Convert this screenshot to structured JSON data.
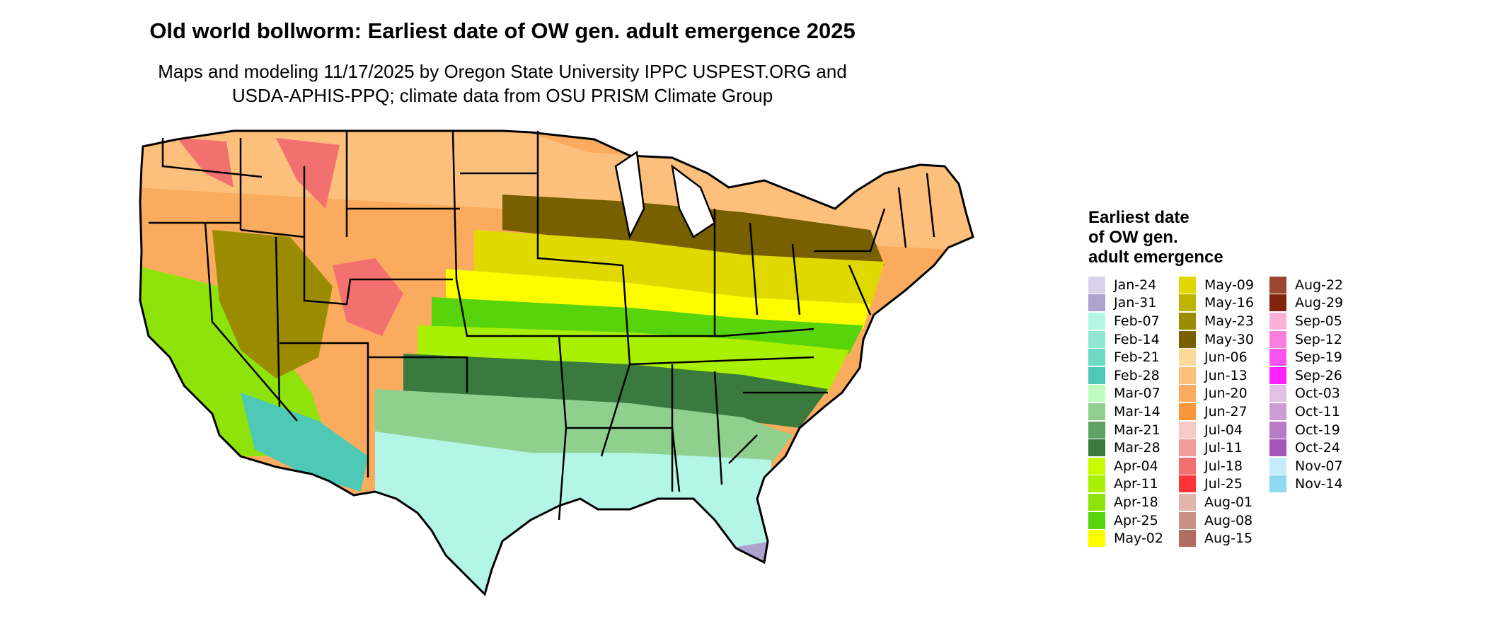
{
  "title": "Old world bollworm: Earliest date of OW gen. adult emergence 2025",
  "subtitle_lines": [
    "Maps and modeling 11/17/2025 by Oregon State University IPPC USPEST.ORG and",
    "USDA-APHIS-PPQ; climate data from OSU PRISM Climate Group"
  ],
  "legend": {
    "title_lines": [
      "Earliest date",
      "of OW gen.",
      "adult emergence"
    ],
    "columns": [
      [
        {
          "label": "Jan-24",
          "color": "#d9d2ec"
        },
        {
          "label": "Jan-31",
          "color": "#b0a2cf"
        },
        {
          "label": "Feb-07",
          "color": "#b3f5e6"
        },
        {
          "label": "Feb-14",
          "color": "#8ee8d3"
        },
        {
          "label": "Feb-21",
          "color": "#6cdac4"
        },
        {
          "label": "Feb-28",
          "color": "#4ec9b5"
        },
        {
          "label": "Mar-07",
          "color": "#bdfbbf"
        },
        {
          "label": "Mar-14",
          "color": "#8fd08e"
        },
        {
          "label": "Mar-21",
          "color": "#5fa162"
        },
        {
          "label": "Mar-28",
          "color": "#3b7a3f"
        },
        {
          "label": "Apr-04",
          "color": "#c8fb00"
        },
        {
          "label": "Apr-11",
          "color": "#a9f000"
        },
        {
          "label": "Apr-18",
          "color": "#8ee30b"
        },
        {
          "label": "Apr-25",
          "color": "#58d40c"
        },
        {
          "label": "May-02",
          "color": "#fdfd00"
        }
      ],
      [
        {
          "label": "May-09",
          "color": "#dfd900"
        },
        {
          "label": "May-16",
          "color": "#beb300"
        },
        {
          "label": "May-23",
          "color": "#9a8b00"
        },
        {
          "label": "May-30",
          "color": "#786000"
        },
        {
          "label": "Jun-06",
          "color": "#fdd89a"
        },
        {
          "label": "Jun-13",
          "color": "#fcc07c"
        },
        {
          "label": "Jun-20",
          "color": "#fbab5e"
        },
        {
          "label": "Jun-27",
          "color": "#f9953a"
        },
        {
          "label": "Jul-04",
          "color": "#f8c9c9"
        },
        {
          "label": "Jul-11",
          "color": "#f49c9c"
        },
        {
          "label": "Jul-18",
          "color": "#f37070"
        },
        {
          "label": "Jul-25",
          "color": "#fe3438"
        },
        {
          "label": "Aug-01",
          "color": "#e1b6aa"
        },
        {
          "label": "Aug-08",
          "color": "#c99184"
        },
        {
          "label": "Aug-15",
          "color": "#b16d5f"
        }
      ],
      [
        {
          "label": "Aug-22",
          "color": "#9c4630"
        },
        {
          "label": "Aug-29",
          "color": "#84230c"
        },
        {
          "label": "Sep-05",
          "color": "#fbb0d9"
        },
        {
          "label": "Sep-12",
          "color": "#fa7edd"
        },
        {
          "label": "Sep-19",
          "color": "#fc53f0"
        },
        {
          "label": "Sep-26",
          "color": "#fe23fe"
        },
        {
          "label": "Oct-03",
          "color": "#e3c1e6"
        },
        {
          "label": "Oct-11",
          "color": "#cc9ed6"
        },
        {
          "label": "Oct-19",
          "color": "#b77bc7"
        },
        {
          "label": "Oct-24",
          "color": "#a656ba"
        },
        {
          "label": "Nov-07",
          "color": "#c4ecfb"
        },
        {
          "label": "Nov-14",
          "color": "#8ed9f2"
        }
      ]
    ]
  },
  "map_zones": {
    "southeast": "#b3f5e6",
    "south": "#8fd08e",
    "delta": "#3b7a3f",
    "mid_south": "#a9f000",
    "midband": "#58d40c",
    "central": "#fdfd00",
    "corn_belt": "#dfd900",
    "upper_midwest": "#786000",
    "north": "#fcc07c",
    "west": "#fbab5e",
    "mountains": "#f37070",
    "southwest": "#4ec9b5",
    "california_valley": "#8ee30b",
    "florida_tip": "#b0a2cf",
    "great_basin": "#9a8b00"
  }
}
